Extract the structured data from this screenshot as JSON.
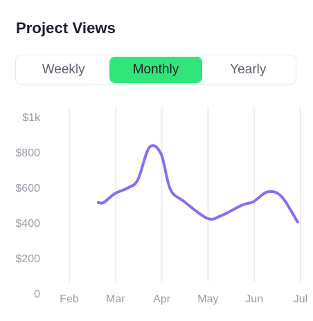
{
  "widget": {
    "title": "Project Views"
  },
  "tabs": [
    {
      "label": "Weekly",
      "active": false
    },
    {
      "label": "Monthly",
      "active": true
    },
    {
      "label": "Yearly",
      "active": false
    }
  ],
  "colors": {
    "accent": "#31e57a",
    "line": "#8b6cf0",
    "grid": "#eeeef1",
    "axis_text": "#9a9ca6"
  },
  "chart_data": {
    "type": "line",
    "categories": [
      "Feb",
      "Mar",
      "Apr",
      "May",
      "Jun",
      "Jul"
    ],
    "y_ticks": [
      "$1k",
      "$800",
      "$600",
      "$400",
      "$200",
      "0"
    ],
    "ylim": [
      0,
      1000
    ],
    "grid": "vertical",
    "legend": "none",
    "series": [
      {
        "x": [
          1.64,
          1.76,
          2.0,
          2.3,
          2.5,
          2.75,
          3.0,
          3.2,
          3.5,
          4.0,
          4.3,
          4.75,
          5.0,
          5.3,
          5.6,
          5.95
        ],
        "values": [
          515,
          515,
          565,
          600,
          645,
          828,
          790,
          590,
          520,
          425,
          440,
          500,
          520,
          575,
          550,
          405
        ]
      }
    ]
  }
}
